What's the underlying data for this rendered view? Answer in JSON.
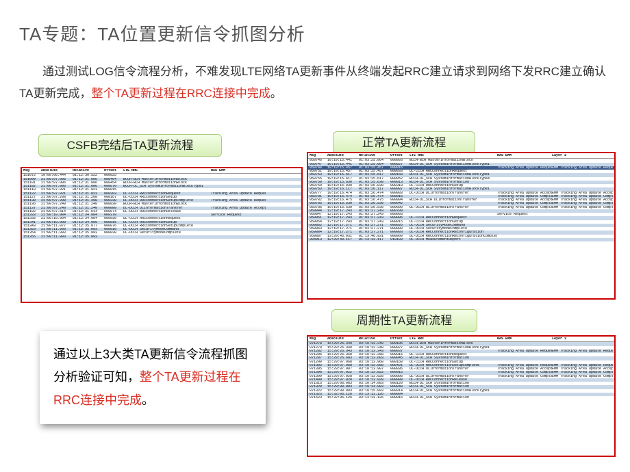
{
  "title": "TA专题：TA位置更新信令抓图分析",
  "paragraph": {
    "p1": "通过测试LOG信令流程分析，不难发现LTE网络TA更新事件从终端发起RRC建立请求到网络下发RRC建立确认TA更新完成，",
    "hl": "整个TA更新过程在RRC连接中完成",
    "p2": "。"
  },
  "labels": {
    "csfb": "CSFB完结后TA更新流程",
    "normal": "正常TA更新流程",
    "periodic": "周期性TA更新流程"
  },
  "conclusion": {
    "t1": "通过以上3大类TA更新信令流程抓图分析验证可知，",
    "hl": "整个TA更新过程在RRC连接中完成",
    "t2": "。"
  },
  "headers": {
    "msg": "Msg",
    "abs": "Absolute",
    "rel": "Relative",
    "off": "Offset",
    "lte": "LTE RRC",
    "nas": "NAS EMM",
    "l3": "Layer 3"
  },
  "tableLeft": [
    {
      "m": "151072",
      "a": "19:00:06.444",
      "r": "01:12:30.522",
      "o": "000025",
      "l": "",
      "n": "",
      "mk": 0
    },
    {
      "m": "151099",
      "a": "21:00:07.006",
      "r": "01:12:31.006",
      "o": "000404",
      "l": "BCCH-BCH MasterInformationBlock",
      "n": "",
      "mk": 1
    },
    {
      "m": "151101",
      "a": "21:00:07.006",
      "r": "01:12:31.006",
      "o": "000454",
      "l": "BCCH-BCH MasterInformationBlock",
      "n": "",
      "mk": 0
    },
    {
      "m": "151102",
      "a": "21:00:07.006",
      "r": "01:12:31.006",
      "o": "000670",
      "l": "BCCH-DL_SCH SystemInformationBlockType1",
      "n": "",
      "mk": 1
    },
    {
      "m": "151110",
      "a": "21:00:07.021",
      "r": "01:12:31.021",
      "o": "000015",
      "l": "",
      "n": "",
      "mk": 0
    },
    {
      "m": "151122",
      "a": "21:00:07.021",
      "r": "01:12:31.021",
      "o": "000203",
      "l": "UL-CCCH RRCConnectionRequest",
      "n": "Tracking Area Update Request",
      "mk": 1
    },
    {
      "m": "151127",
      "a": "21:00:07.208",
      "r": "01:12:31.208",
      "o": "000167",
      "l": "DL-CCCH RRCConnectionSetup",
      "n": "",
      "mk": 0
    },
    {
      "m": "151130",
      "a": "21:00:07.208",
      "r": "01:12:31.208",
      "o": "000330",
      "l": "UL-DCCH RRCConnectionSetupComplete",
      "n": "Tracking Area Update Request",
      "mk": 1
    },
    {
      "m": "151136",
      "a": "21:00:07.240",
      "r": "01:12:31.240",
      "o": "000030",
      "l": "BCCH-BCH MasterInformationBlock",
      "n": "",
      "mk": 0
    },
    {
      "m": "151137",
      "a": "21:00:07.240",
      "r": "01:12:31.240",
      "o": "000080",
      "l": "DL-DCCH DLInformationTransfer",
      "n": "Tracking Area Update Accept",
      "mk": 1
    },
    {
      "m": "151192",
      "a": "21:00:07.614",
      "r": "01:12:31.614",
      "o": "000074",
      "l": "DL-DCCH RRCConnectionRelease",
      "n": "",
      "mk": 0
    },
    {
      "m": "151333",
      "a": "21:00:10.984",
      "r": "01:12:34.984",
      "o": "000370",
      "l": "",
      "n": "Service Request",
      "mk": 1
    },
    {
      "m": "151335",
      "a": "21:00:10.984",
      "r": "01:12:34.984",
      "o": "000030",
      "l": "UL-CCCH RRCConnectionRequest",
      "n": "",
      "mk": 0
    },
    {
      "m": "151341",
      "a": "21:00:10.999",
      "r": "01:12:34.999",
      "o": "000015",
      "l": "DL-CCCH RRCConnectionSetup",
      "n": "",
      "mk": 1
    },
    {
      "m": "151343",
      "a": "21:00:11.077",
      "r": "01:12:35.077",
      "o": "000076",
      "l": "UL-DCCH RRCConnectionSetupComplete",
      "n": "",
      "mk": 0
    },
    {
      "m": "151353",
      "a": "21:00:11.093",
      "r": "01:12:35.093",
      "o": "000016",
      "l": "DL-DCCH SecurityModeCommand",
      "n": "",
      "mk": 1
    },
    {
      "m": "151354",
      "a": "21:00:11.093",
      "r": "01:12:35.093",
      "o": "000030",
      "l": "UL-DCCH SecurityModeComplete",
      "n": "",
      "mk": 0
    },
    {
      "m": "151355",
      "a": "21:00:11.093",
      "r": "01:12:35.093",
      "o": "",
      "l": "",
      "n": "",
      "mk": 1
    }
  ],
  "tableRightTop": [
    {
      "m": "950746",
      "a": "10:19:15.441",
      "r": "01:03:25.064",
      "o": "000003",
      "l": "BCCH-BCH MasterInformationBlock",
      "n": "",
      "x": "",
      "mk": 0
    },
    {
      "m": "950747",
      "a": "10:19:15.441",
      "r": "01:03:25.064",
      "o": "000027",
      "l": "BCCH-DL_SCH SystemInformationBlockType1",
      "n": "",
      "x": "",
      "mk": 1
    },
    {
      "m": "950748",
      "a": "10:19:15.457",
      "r": "01:03:25.457",
      "o": "000016",
      "l": "",
      "n": "Tracking Area Update Request",
      "x": "EMM Tracking Area Update Request",
      "mk": 2
    },
    {
      "m": "950751",
      "a": "10:19:15.457",
      "r": "01:03:25.457",
      "o": "000033",
      "l": "UL-CCCH RRCConnectionRequest",
      "n": "",
      "x": "",
      "mk": 0
    },
    {
      "m": "950753",
      "a": "10:19:15.617",
      "r": "01:03:25.617",
      "o": "000160",
      "l": "BCCH-DL_SCH SystemInformationBlockType1",
      "n": "",
      "x": "",
      "mk": 1
    },
    {
      "m": "950755",
      "a": "10:19:15.617",
      "r": "01:03:25.617",
      "o": "000052",
      "l": "BCCH-DL_SCH SystemInformationBlockType4",
      "n": "",
      "x": "",
      "mk": 0
    },
    {
      "m": "950758",
      "a": "10:19:15.630",
      "r": "01:03:25.630",
      "o": "000013",
      "l": "BCCH-DL_SCH SystemInformation",
      "n": "",
      "x": "",
      "mk": 1
    },
    {
      "m": "950759",
      "a": "10:19:16.030",
      "r": "01:03:26.030",
      "o": "000318",
      "l": "DL-CCCH RRCConnectionSetup",
      "n": "",
      "x": "",
      "mk": 0
    },
    {
      "m": "950763",
      "a": "10:19:16.117",
      "r": "01:03:26.117",
      "o": "000087",
      "l": "BCCH-DL_SCH SystemInformationBlockType1",
      "n": "",
      "x": "",
      "mk": 1
    },
    {
      "m": "950777",
      "a": "10:19:16.474",
      "r": "01:03:26.474",
      "o": "000003",
      "l": "DL-DCCH DLInformationTransfer",
      "n": "Tracking Area Update Accept",
      "x": "EMM Tracking Area Update Accept",
      "mk": 0
    },
    {
      "m": "950781",
      "a": "10:19:16.474",
      "r": "01:03:26.474",
      "o": "000016",
      "l": "",
      "n": "Tracking Area Update Complete",
      "x": "EMM Tracking Area Update Complete",
      "mk": 1
    },
    {
      "m": "950782",
      "a": "10:19:16.475",
      "r": "01:03:26.475",
      "o": "000004",
      "l": "BCCH-DL_SCH DLInformationTransfer",
      "n": "Tracking Area Update Accept",
      "x": "EMM Tracking Area Update Accept",
      "mk": 0
    },
    {
      "m": "950785",
      "a": "10:19:16.530",
      "r": "01:03:26.530",
      "o": "000042",
      "l": "",
      "n": "Tracking Area Update Complete",
      "x": "EMM Tracking Area Update Complete",
      "mk": 1
    },
    {
      "m": "950786",
      "a": "10:19:16.530",
      "r": "01:03:26.530",
      "o": "000000",
      "l": "UL-DCCH ULInformationTransfer",
      "n": "Tracking Area Update Complete",
      "x": "EMM Tracking Area Update Complete",
      "mk": 0
    },
    {
      "m": "950844",
      "a": "12:19:17.243",
      "r": "01:03:27.243",
      "o": "000709",
      "l": "",
      "n": "",
      "x": "",
      "mk": 1
    },
    {
      "m": "950847",
      "a": "12:19:17.243",
      "r": "01:03:27.243",
      "o": "000003",
      "l": "",
      "n": "Service Request",
      "x": "",
      "mk": 0
    },
    {
      "m": "950851",
      "a": "12:19:17.243",
      "r": "01:03:27.243",
      "o": "000006",
      "l": "UL-CCCH RRCConnectionRequest",
      "n": "",
      "x": "",
      "mk": 1
    },
    {
      "m": "950854",
      "a": "12:19:17.243",
      "r": "01:03:27.243",
      "o": "000015",
      "l": "DL-CCCH RRCConnectionSetup",
      "n": "",
      "x": "",
      "mk": 0
    },
    {
      "m": "950862",
      "a": "12:19:17.271",
      "r": "01:03:27.271",
      "o": "000026",
      "l": "DL-DCCH SecurityModeCommand",
      "n": "",
      "x": "",
      "mk": 1
    },
    {
      "m": "950863",
      "a": "12:19:17.271",
      "r": "01:03:27.271",
      "o": "000000",
      "l": "UL-DCCH SecurityModeComplete",
      "n": "",
      "x": "",
      "mk": 0
    },
    {
      "m": "950884",
      "a": "12:19:17.271",
      "r": "01:03:27.271",
      "o": "000003",
      "l": "DL-DCCH RRCConnectionReconfiguration",
      "n": "",
      "x": "",
      "mk": 1
    },
    {
      "m": "950887",
      "a": "13:20:46.931",
      "r": "01:13:46.931",
      "o": "000060",
      "l": "UL-DCCH RRCConnectionReconfigurationComplete",
      "n": "",
      "x": "",
      "mk": 0
    },
    {
      "m": "394013",
      "a": "12:20:49.117",
      "r": "01:13:13.117",
      "o": "018183",
      "l": "DL-DCCH MeasurementReport",
      "n": "",
      "x": "",
      "mk": 1
    }
  ],
  "tableRightBot": [
    {
      "m": "071278",
      "a": "15:29:26.340",
      "r": "03:10:13.340",
      "o": "000196",
      "l": "BCCH-BCH MasterInformationBlock",
      "n": "",
      "x": "",
      "mk": 1
    },
    {
      "m": "071279",
      "a": "15:29:26.340",
      "r": "03:10:13.340",
      "o": "000027",
      "l": "BCCH-DL_SCH SystemInformationBlockType1",
      "n": "",
      "x": "",
      "mk": 0
    },
    {
      "m": "071282",
      "a": "15:29:26.343",
      "r": "03:10:13.343",
      "o": "000037",
      "l": "",
      "n": "Tracking Area Update Request",
      "x": "EMM Tracking Area Update Request",
      "mk": 1
    },
    {
      "m": "071286",
      "a": "15:29:26.358",
      "r": "03:10:13.358",
      "o": "000015",
      "l": "UL-CCCH RRCConnectionRequest",
      "n": "",
      "x": "",
      "mk": 0
    },
    {
      "m": "071287",
      "a": "15:29:26.603",
      "r": "03:10:13.603",
      "o": "000045",
      "l": "BCCH-DL_SCH SystemInformation",
      "n": "",
      "x": "",
      "mk": 1
    },
    {
      "m": "071290",
      "a": "15:29:07.968",
      "r": "03:10:13.968",
      "o": "000160",
      "l": "DL-CCCH RRCConnectionSetup",
      "n": "",
      "x": "",
      "mk": 0
    },
    {
      "m": "071302",
      "a": "15:29:07.968",
      "r": "03:10:13.968",
      "o": "000421",
      "l": "UL-DCCH RRCConnectionSetupComplete",
      "n": "Tracking Area Update Request",
      "x": "EMM Tracking Area Update Request",
      "mk": 1
    },
    {
      "m": "071395",
      "a": "15:29:07.907",
      "r": "03:10:13.907",
      "o": "000036",
      "l": "DL-DCCH DLInformationTransfer",
      "n": "Tracking Area Update Accept",
      "x": "EMM Tracking Area Update Accept",
      "mk": 0
    },
    {
      "m": "071398",
      "a": "15:29:07.922",
      "r": "03:10:13.922",
      "o": "000015",
      "l": "",
      "n": "Tracking Area Update Complete",
      "x": "EMM Tracking Area Update Complete",
      "mk": 1
    },
    {
      "m": "071399",
      "a": "15:29:07.928",
      "r": "03:10:13.928",
      "o": "000006",
      "l": "UL-DCCH ULInformationTransfer",
      "n": "Tracking Area Update Complete",
      "x": "EMM Tracking Area Update Complete",
      "mk": 0
    },
    {
      "m": "071400",
      "a": "15:29:07.928",
      "r": "03:10:13.928",
      "o": "000000",
      "l": "DL-DCCH RRCConnectionRelease",
      "n": "",
      "x": "",
      "mk": 1
    },
    {
      "m": "071313",
      "a": "15:29:08.983",
      "r": "03:10:14.983",
      "o": "000120",
      "l": "BCCH-DL_SCH SystemInformation",
      "n": "",
      "x": "",
      "mk": 0
    },
    {
      "m": "071320",
      "a": "15:29:08.983",
      "r": "03:10:14.983",
      "o": "000048",
      "l": "BCCH-DL_SCH SystemInformation",
      "n": "",
      "x": "",
      "mk": 1
    },
    {
      "m": "071322",
      "a": "15:29:08.093",
      "r": "03:10:15.093",
      "o": "000014",
      "l": "BCCH-DL_SCH SystemInformationBlockType1",
      "n": "",
      "x": "",
      "mk": 0
    },
    {
      "m": "071323",
      "a": "15:32:06.126",
      "r": "03:13:11.126",
      "o": "000084",
      "l": "",
      "n": "",
      "x": "",
      "mk": 1
    },
    {
      "m": "071523",
      "a": "15:32:06.126",
      "r": "03:13:11.126",
      "o": "000016",
      "l": "BCCH-DL_SCH SystemInformation",
      "n": "",
      "x": "",
      "mk": 0
    }
  ]
}
